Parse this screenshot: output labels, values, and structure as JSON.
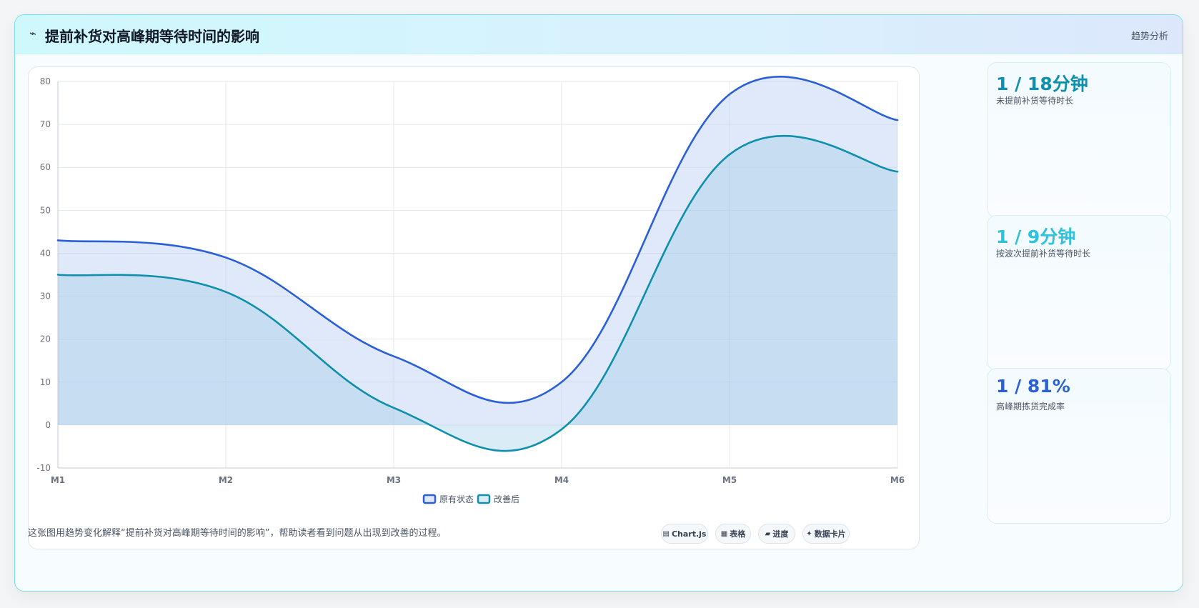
{
  "header": {
    "icon": "trend-line-icon",
    "icon_glyph": "⌁",
    "title": "提前补货对高峰期等待时间的影响",
    "tag": "趋势分析"
  },
  "chart_data": {
    "type": "area",
    "title": "",
    "xlabel": "",
    "ylabel": "",
    "categories": [
      "M1",
      "M2",
      "M3",
      "M4",
      "M5",
      "M6"
    ],
    "ylim": [
      -10,
      80
    ],
    "yticks": [
      -10,
      0,
      10,
      20,
      30,
      40,
      50,
      60,
      70,
      80
    ],
    "grid": true,
    "smooth": true,
    "legend_position": "bottom",
    "series": [
      {
        "name": "原有状态",
        "values": [
          43,
          39,
          16,
          10,
          77,
          71
        ],
        "color": "#2a5fd6",
        "fill": "rgba(186,206,245,0.45)"
      },
      {
        "name": "改善后",
        "values": [
          35,
          31,
          4,
          -1,
          63,
          59
        ],
        "color": "#0e8fad",
        "fill": "rgba(150,200,225,0.35)"
      }
    ]
  },
  "side_cards": [
    {
      "value": "1 / 18分钟",
      "label": "未提前补货等待时长",
      "color": "#0e8fad"
    },
    {
      "value": "1 / 9分钟",
      "label": "按波次提前补货等待时长",
      "color": "#2fc2dd"
    },
    {
      "value": "1 / 81%",
      "label": "高峰期拣货完成率",
      "color": "#2a5fd6"
    }
  ],
  "footer": {
    "description": "这张图用趋势变化解释“提前补货对高峰期等待时间的影响”，帮助读者看到问题从出现到改善的过程。",
    "pills": [
      {
        "glyph": "▤",
        "icon": "chart-icon",
        "label": "Chart.js"
      },
      {
        "glyph": "▦",
        "icon": "table-icon",
        "label": "表格"
      },
      {
        "glyph": "▰",
        "icon": "progress-icon",
        "label": "进度"
      },
      {
        "glyph": "✦",
        "icon": "data-card-icon",
        "label": "数据卡片"
      }
    ]
  }
}
